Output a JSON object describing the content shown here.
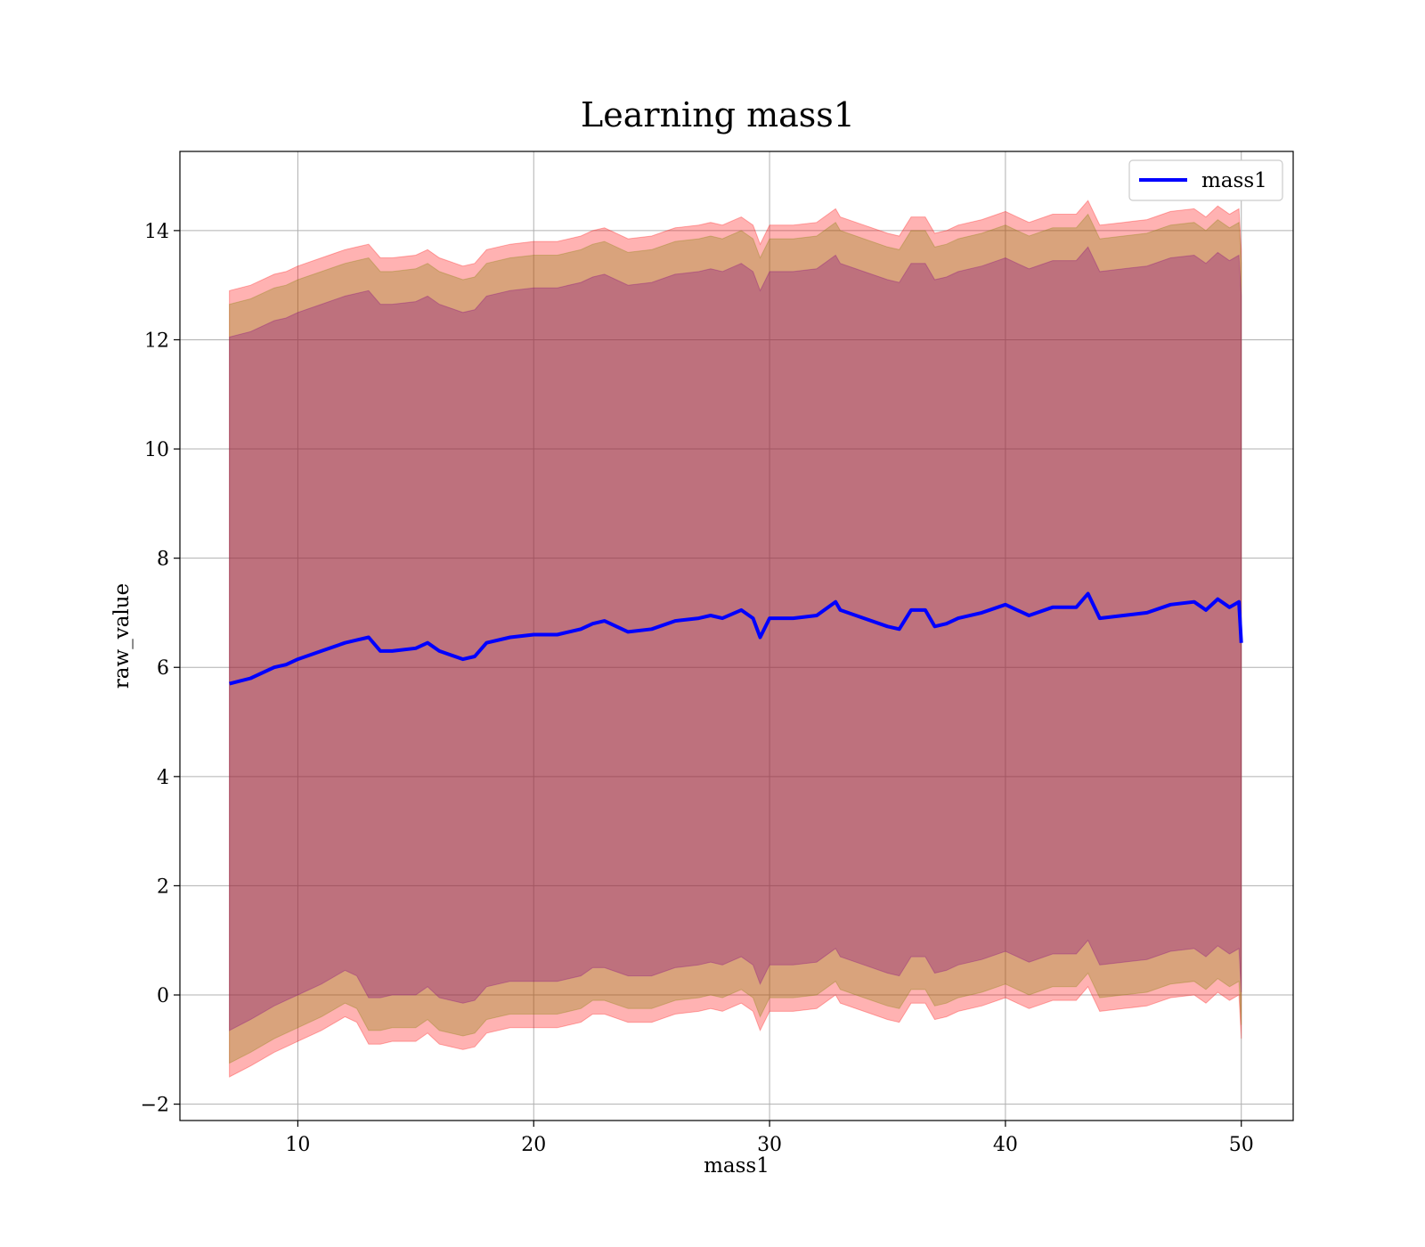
{
  "chart_data": {
    "type": "line",
    "title": "Learning mass1",
    "xlabel": "mass1",
    "ylabel": "raw_value",
    "xlim": [
      5,
      52.2
    ],
    "ylim": [
      -2.3,
      15.45
    ],
    "xticks": [
      10,
      20,
      30,
      40,
      50
    ],
    "xtick_labels": [
      "10",
      "20",
      "30",
      "40",
      "50"
    ],
    "yticks": [
      -2,
      0,
      2,
      4,
      6,
      8,
      10,
      12,
      14
    ],
    "ytick_labels": [
      "−2",
      "0",
      "2",
      "4",
      "6",
      "8",
      "10",
      "12",
      "14"
    ],
    "grid": true,
    "legend": {
      "position": "top-right",
      "entries": [
        "mass1"
      ]
    },
    "colors": {
      "line": "#0000ff",
      "band_outer": "#ff0000",
      "band_mid": "#808000",
      "band_inner": "#800080",
      "grid": "#b0b0b0"
    },
    "series": [
      {
        "name": "mass1",
        "x": [
          7.1,
          8,
          9,
          9.5,
          10,
          11,
          12,
          12.5,
          13,
          13.5,
          14,
          15,
          15.5,
          16,
          17,
          17.5,
          18,
          19,
          20,
          21,
          22,
          22.5,
          23,
          24,
          25,
          26,
          27,
          27.5,
          28,
          28.8,
          29.3,
          29.6,
          30,
          31,
          32,
          32.8,
          33,
          34,
          35,
          35.5,
          36,
          36.6,
          37,
          37.5,
          38,
          39,
          40,
          40.5,
          41,
          42,
          43,
          43.5,
          44,
          45,
          46,
          47,
          48,
          48.5,
          49,
          49.5,
          49.9,
          50
        ],
        "mean": [
          5.7,
          5.8,
          6.0,
          6.05,
          6.15,
          6.3,
          6.45,
          6.5,
          6.55,
          6.3,
          6.3,
          6.35,
          6.45,
          6.3,
          6.15,
          6.2,
          6.45,
          6.55,
          6.6,
          6.6,
          6.7,
          6.8,
          6.85,
          6.65,
          6.7,
          6.85,
          6.9,
          6.95,
          6.9,
          7.05,
          6.9,
          6.55,
          6.9,
          6.9,
          6.95,
          7.2,
          7.05,
          6.9,
          6.75,
          6.7,
          7.05,
          7.05,
          6.75,
          6.8,
          6.9,
          7.0,
          7.15,
          7.05,
          6.95,
          7.1,
          7.1,
          7.35,
          6.9,
          6.95,
          7.0,
          7.15,
          7.2,
          7.05,
          7.25,
          7.1,
          7.2,
          6.45
        ],
        "band_outer": {
          "lower": [
            -1.5,
            -1.3,
            -1.05,
            -0.95,
            -0.85,
            -0.65,
            -0.4,
            -0.5,
            -0.9,
            -0.9,
            -0.85,
            -0.85,
            -0.7,
            -0.9,
            -1.0,
            -0.95,
            -0.7,
            -0.6,
            -0.6,
            -0.6,
            -0.5,
            -0.35,
            -0.35,
            -0.5,
            -0.5,
            -0.35,
            -0.3,
            -0.25,
            -0.3,
            -0.15,
            -0.3,
            -0.65,
            -0.3,
            -0.3,
            -0.25,
            0.0,
            -0.15,
            -0.3,
            -0.45,
            -0.5,
            -0.15,
            -0.15,
            -0.45,
            -0.4,
            -0.3,
            -0.2,
            -0.05,
            -0.15,
            -0.25,
            -0.1,
            -0.1,
            0.15,
            -0.3,
            -0.25,
            -0.2,
            -0.05,
            0.0,
            -0.15,
            0.05,
            -0.1,
            0.0,
            -0.8
          ],
          "upper": [
            12.9,
            13.0,
            13.2,
            13.25,
            13.35,
            13.5,
            13.65,
            13.7,
            13.75,
            13.5,
            13.5,
            13.55,
            13.65,
            13.5,
            13.35,
            13.4,
            13.65,
            13.75,
            13.8,
            13.8,
            13.9,
            14.0,
            14.05,
            13.85,
            13.9,
            14.05,
            14.1,
            14.15,
            14.1,
            14.25,
            14.1,
            13.75,
            14.1,
            14.1,
            14.15,
            14.4,
            14.25,
            14.1,
            13.95,
            13.9,
            14.25,
            14.25,
            13.95,
            14.0,
            14.1,
            14.2,
            14.35,
            14.25,
            14.15,
            14.3,
            14.3,
            14.55,
            14.1,
            14.15,
            14.2,
            14.35,
            14.4,
            14.25,
            14.45,
            14.3,
            14.4,
            13.65
          ]
        },
        "band_mid": {
          "lower": [
            -1.25,
            -1.05,
            -0.8,
            -0.7,
            -0.6,
            -0.4,
            -0.15,
            -0.25,
            -0.65,
            -0.65,
            -0.6,
            -0.6,
            -0.45,
            -0.65,
            -0.75,
            -0.7,
            -0.45,
            -0.35,
            -0.35,
            -0.35,
            -0.25,
            -0.1,
            -0.1,
            -0.25,
            -0.25,
            -0.1,
            -0.05,
            0.0,
            -0.05,
            0.1,
            -0.05,
            -0.4,
            -0.05,
            -0.05,
            0.0,
            0.25,
            0.1,
            -0.05,
            -0.2,
            -0.25,
            0.1,
            0.1,
            -0.2,
            -0.15,
            -0.05,
            0.05,
            0.2,
            0.1,
            0.0,
            0.15,
            0.15,
            0.4,
            -0.05,
            0.0,
            0.05,
            0.2,
            0.25,
            0.1,
            0.3,
            0.15,
            0.25,
            -0.55
          ],
          "upper": [
            12.65,
            12.75,
            12.95,
            13.0,
            13.1,
            13.25,
            13.4,
            13.45,
            13.5,
            13.25,
            13.25,
            13.3,
            13.4,
            13.25,
            13.1,
            13.15,
            13.4,
            13.5,
            13.55,
            13.55,
            13.65,
            13.75,
            13.8,
            13.6,
            13.65,
            13.8,
            13.85,
            13.9,
            13.85,
            14.0,
            13.85,
            13.5,
            13.85,
            13.85,
            13.9,
            14.15,
            14.0,
            13.85,
            13.7,
            13.65,
            14.0,
            14.0,
            13.7,
            13.75,
            13.85,
            13.95,
            14.1,
            14.0,
            13.9,
            14.05,
            14.05,
            14.3,
            13.85,
            13.9,
            13.95,
            14.1,
            14.15,
            14.0,
            14.2,
            14.05,
            14.15,
            13.4
          ]
        },
        "band_inner": {
          "lower": [
            -0.65,
            -0.45,
            -0.2,
            -0.1,
            0.0,
            0.2,
            0.45,
            0.35,
            -0.05,
            -0.05,
            0.0,
            0.0,
            0.15,
            -0.05,
            -0.15,
            -0.1,
            0.15,
            0.25,
            0.25,
            0.25,
            0.35,
            0.5,
            0.5,
            0.35,
            0.35,
            0.5,
            0.55,
            0.6,
            0.55,
            0.7,
            0.55,
            0.2,
            0.55,
            0.55,
            0.6,
            0.85,
            0.7,
            0.55,
            0.4,
            0.35,
            0.7,
            0.7,
            0.4,
            0.45,
            0.55,
            0.65,
            0.8,
            0.7,
            0.6,
            0.75,
            0.75,
            1.0,
            0.55,
            0.6,
            0.65,
            0.8,
            0.85,
            0.7,
            0.9,
            0.75,
            0.85,
            0.05
          ],
          "upper": [
            12.05,
            12.15,
            12.35,
            12.4,
            12.5,
            12.65,
            12.8,
            12.85,
            12.9,
            12.65,
            12.65,
            12.7,
            12.8,
            12.65,
            12.5,
            12.55,
            12.8,
            12.9,
            12.95,
            12.95,
            13.05,
            13.15,
            13.2,
            13.0,
            13.05,
            13.2,
            13.25,
            13.3,
            13.25,
            13.4,
            13.25,
            12.9,
            13.25,
            13.25,
            13.3,
            13.55,
            13.4,
            13.25,
            13.1,
            13.05,
            13.4,
            13.4,
            13.1,
            13.15,
            13.25,
            13.35,
            13.5,
            13.4,
            13.3,
            13.45,
            13.45,
            13.7,
            13.25,
            13.3,
            13.35,
            13.5,
            13.55,
            13.4,
            13.6,
            13.45,
            13.55,
            12.8
          ]
        }
      }
    ]
  }
}
